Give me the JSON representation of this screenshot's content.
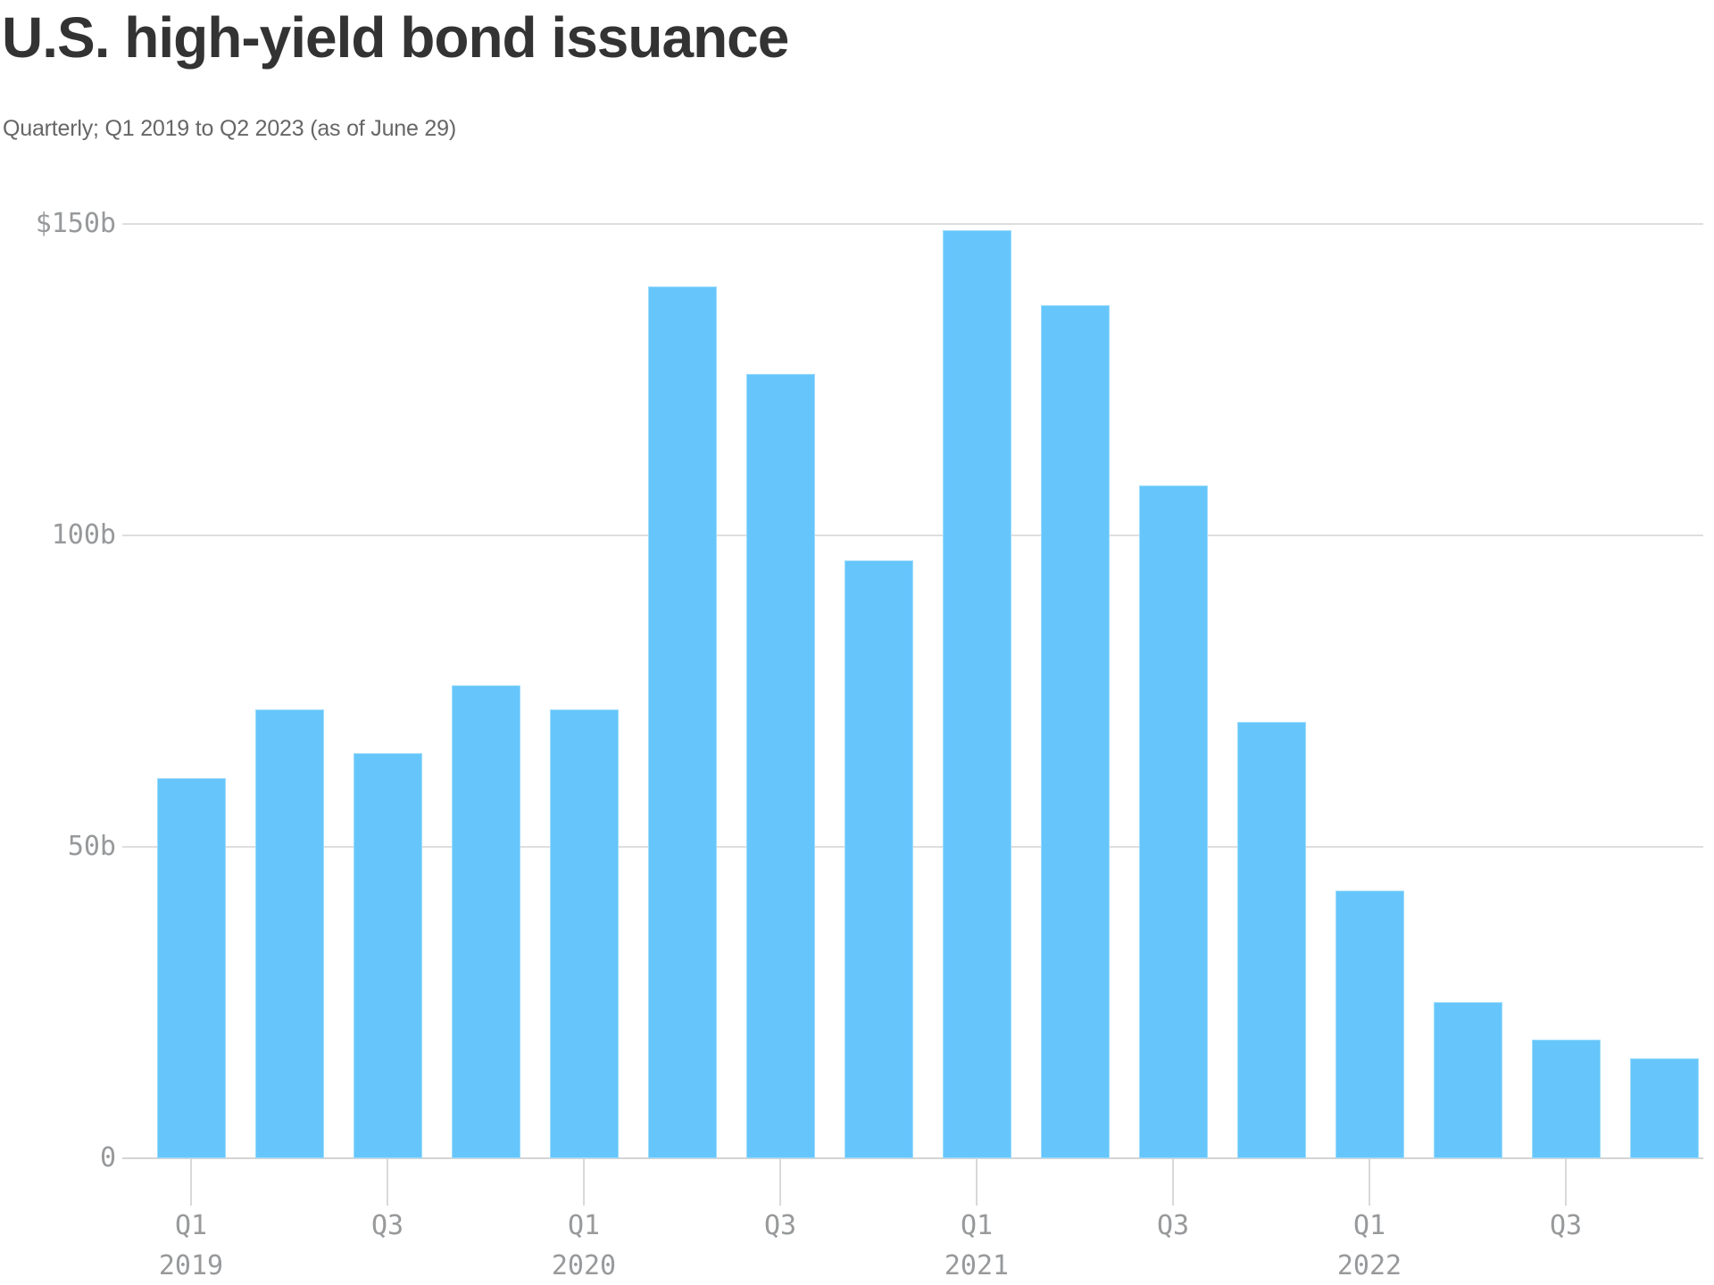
{
  "header": {
    "title": "U.S. high-yield bond issuance",
    "subtitle": "Quarterly; Q1 2019 to Q2 2023 (as of June 29)"
  },
  "chart_data": {
    "type": "bar",
    "title": "U.S. high-yield bond issuance",
    "subtitle": "Quarterly; Q1 2019 to Q2 2023 (as of June 29)",
    "unit": "billions of US dollars",
    "categories": [
      "Q1 2019",
      "Q2 2019",
      "Q3 2019",
      "Q4 2019",
      "Q1 2020",
      "Q2 2020",
      "Q3 2020",
      "Q4 2020",
      "Q1 2021",
      "Q2 2021",
      "Q3 2021",
      "Q4 2021",
      "Q1 2022",
      "Q2 2022",
      "Q3 2022",
      "Q4 2022"
    ],
    "values": [
      61,
      72,
      65,
      76,
      72,
      140,
      126,
      96,
      149,
      137,
      108,
      70,
      43,
      25,
      19,
      16
    ],
    "ylim": [
      0,
      150
    ],
    "grid": "horizontal",
    "legend": "none",
    "yticks": [
      {
        "value": 150,
        "label": "$150b"
      },
      {
        "value": 100,
        "label": "100b"
      },
      {
        "value": 50,
        "label": "50b"
      },
      {
        "value": 0,
        "label": "0"
      }
    ],
    "xticks": [
      {
        "index": 0,
        "label": "Q1",
        "year": "2019"
      },
      {
        "index": 2,
        "label": "Q3"
      },
      {
        "index": 4,
        "label": "Q1",
        "year": "2020"
      },
      {
        "index": 6,
        "label": "Q3"
      },
      {
        "index": 8,
        "label": "Q1",
        "year": "2021"
      },
      {
        "index": 10,
        "label": "Q3"
      },
      {
        "index": 12,
        "label": "Q1",
        "year": "2022"
      },
      {
        "index": 14,
        "label": "Q3"
      }
    ],
    "colors": {
      "bar_fill": "#66c6fb",
      "bar_border": "#9ddcfc",
      "grid": "#dedede",
      "axis": "#d4d4d4",
      "tick_label": "#97999b",
      "title": "#333333",
      "subtitle": "#666666",
      "background": "#ffffff"
    }
  }
}
